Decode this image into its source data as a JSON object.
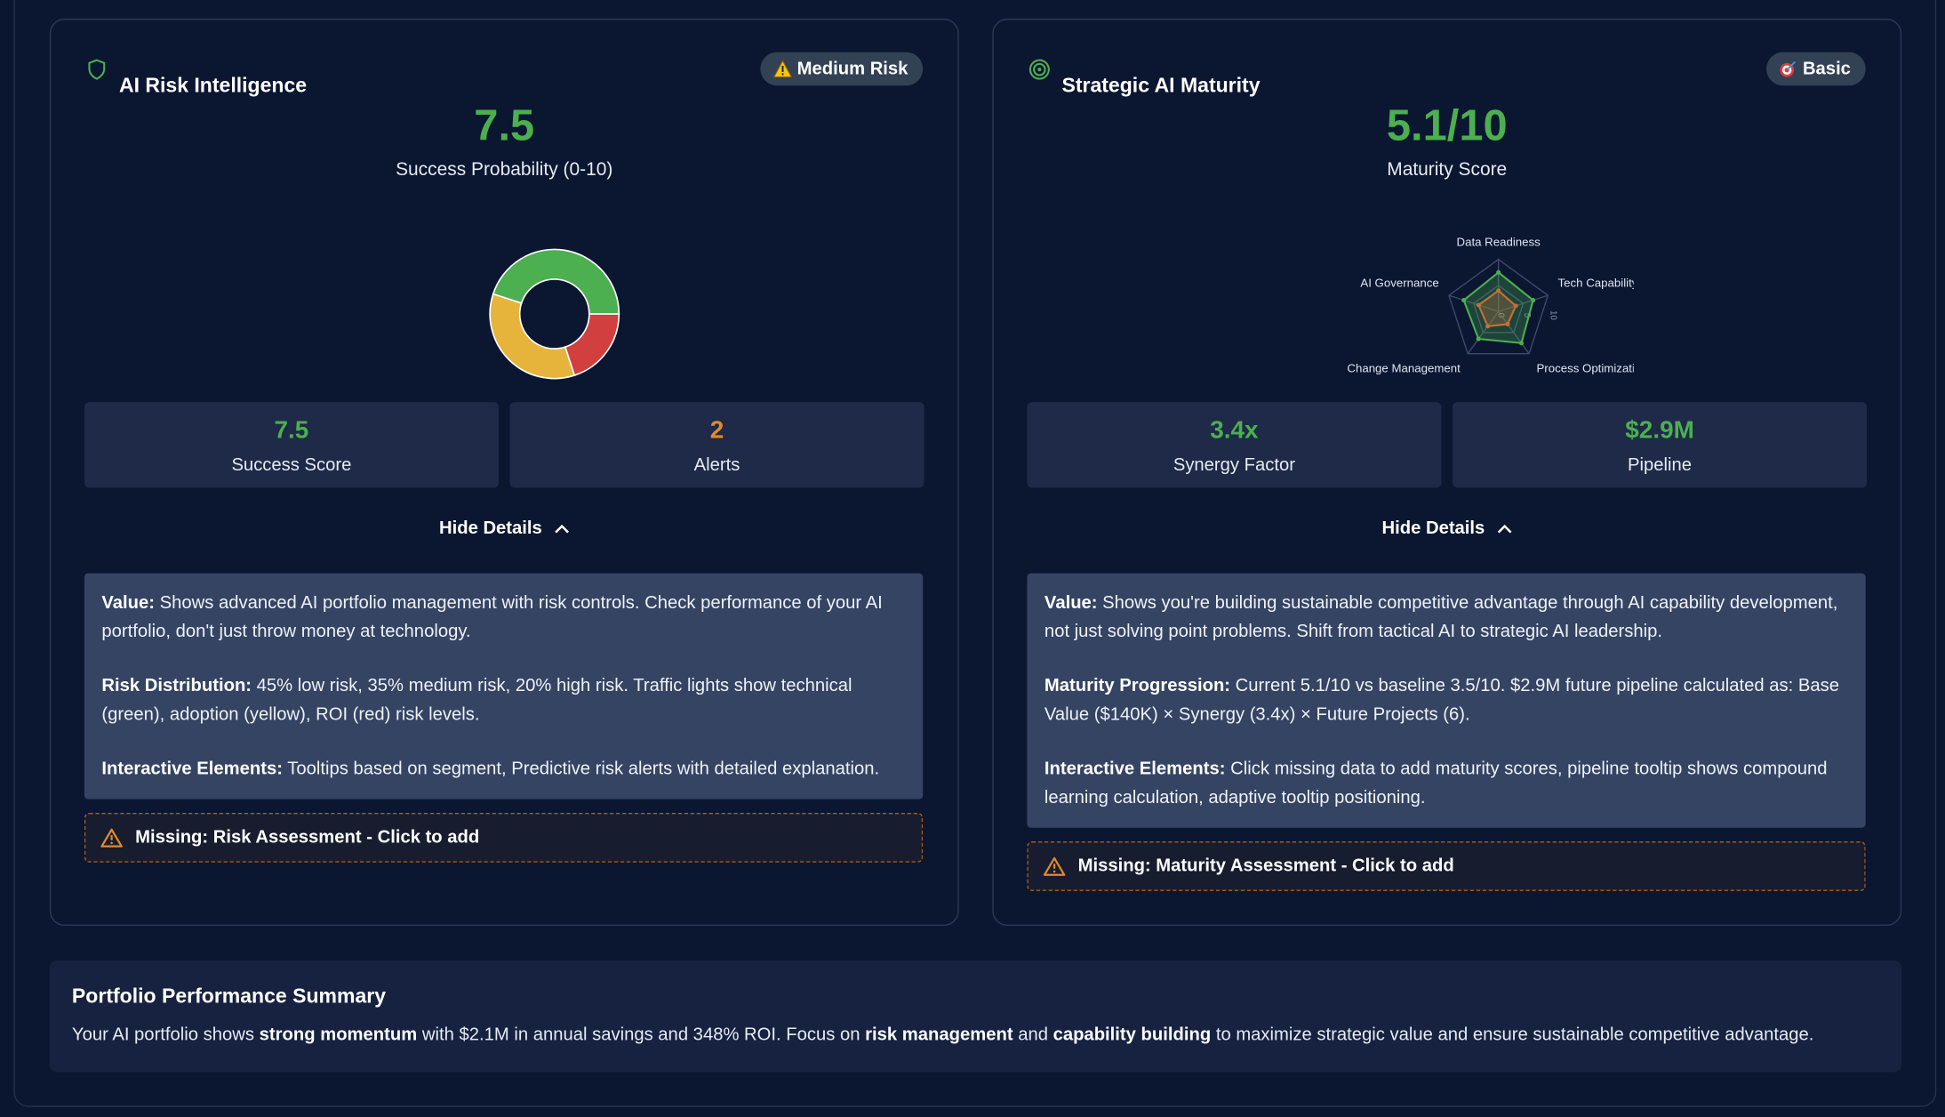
{
  "cards": [
    {
      "title": "AI Risk Intelligence",
      "badge": "Medium Risk",
      "score": "7.5",
      "score_label": "Success Probability (0-10)",
      "stats": [
        {
          "value": "7.5",
          "label": "Success Score",
          "color": "#4caf50"
        },
        {
          "value": "2",
          "label": "Alerts",
          "color": "#e08a2e"
        }
      ],
      "toggle": "Hide Details",
      "details": [
        {
          "label": "Value:",
          "text": "Shows advanced AI portfolio management with risk controls. Check performance of your AI portfolio, don't just throw money at technology."
        },
        {
          "label": "Risk Distribution:",
          "text": "45% low risk, 35% medium risk, 20% high risk. Traffic lights show technical (green), adoption (yellow), ROI (red) risk levels."
        },
        {
          "label": "Interactive Elements:",
          "text": "Tooltips based on segment, Predictive risk alerts with detailed explanation."
        }
      ],
      "missing": "Missing: Risk Assessment - Click to add"
    },
    {
      "title": "Strategic AI Maturity",
      "badge": "Basic",
      "score": "5.1/10",
      "score_label": "Maturity Score",
      "stats": [
        {
          "value": "3.4x",
          "label": "Synergy Factor",
          "color": "#4caf50"
        },
        {
          "value": "$2.9M",
          "label": "Pipeline",
          "color": "#4caf50"
        }
      ],
      "toggle": "Hide Details",
      "details": [
        {
          "label": "Value:",
          "text": "Shows you're building sustainable competitive advantage through AI capability development, not just solving point problems. Shift from tactical AI to strategic AI leadership."
        },
        {
          "label": "Maturity Progression:",
          "text": "Current 5.1/10 vs baseline 3.5/10. $2.9M future pipeline calculated as: Base Value ($140K) × Synergy (3.4x) × Future Projects (6)."
        },
        {
          "label": "Interactive Elements:",
          "text": "Click missing data to add maturity scores, pipeline tooltip shows compound learning calculation, adaptive tooltip positioning."
        }
      ],
      "missing": "Missing: Maturity Assessment - Click to add"
    }
  ],
  "chart_data": [
    {
      "type": "pie",
      "donut": true,
      "values": [
        45,
        20,
        35
      ],
      "colors": [
        "#4caf50",
        "#d23f3f",
        "#e6b43a"
      ]
    },
    {
      "type": "radar",
      "categories": [
        "Data Readiness",
        "Tech Capability",
        "Process Optimization",
        "Change Management",
        "AI Governance"
      ],
      "series": [
        {
          "color": "#4caf50",
          "values": [
            7.5,
            7,
            7.5,
            6.5,
            7
          ]
        },
        {
          "color": "#c2703a",
          "values": [
            4,
            3.5,
            3,
            3.5,
            4
          ]
        }
      ],
      "rlim": [
        0,
        10
      ],
      "rticks": [
        0,
        5,
        10
      ],
      "grid": true
    }
  ],
  "summary": {
    "title": "Portfolio Performance Summary",
    "runs": [
      {
        "text": "Your AI portfolio shows "
      },
      {
        "text": "strong momentum",
        "bold": true
      },
      {
        "text": " with $2.1M in annual savings and 348% ROI. Focus on "
      },
      {
        "text": "risk management",
        "bold": true
      },
      {
        "text": " and "
      },
      {
        "text": "capability building",
        "bold": true
      },
      {
        "text": " to maximize strategic value and ensure sustainable competitive advantage."
      }
    ]
  }
}
